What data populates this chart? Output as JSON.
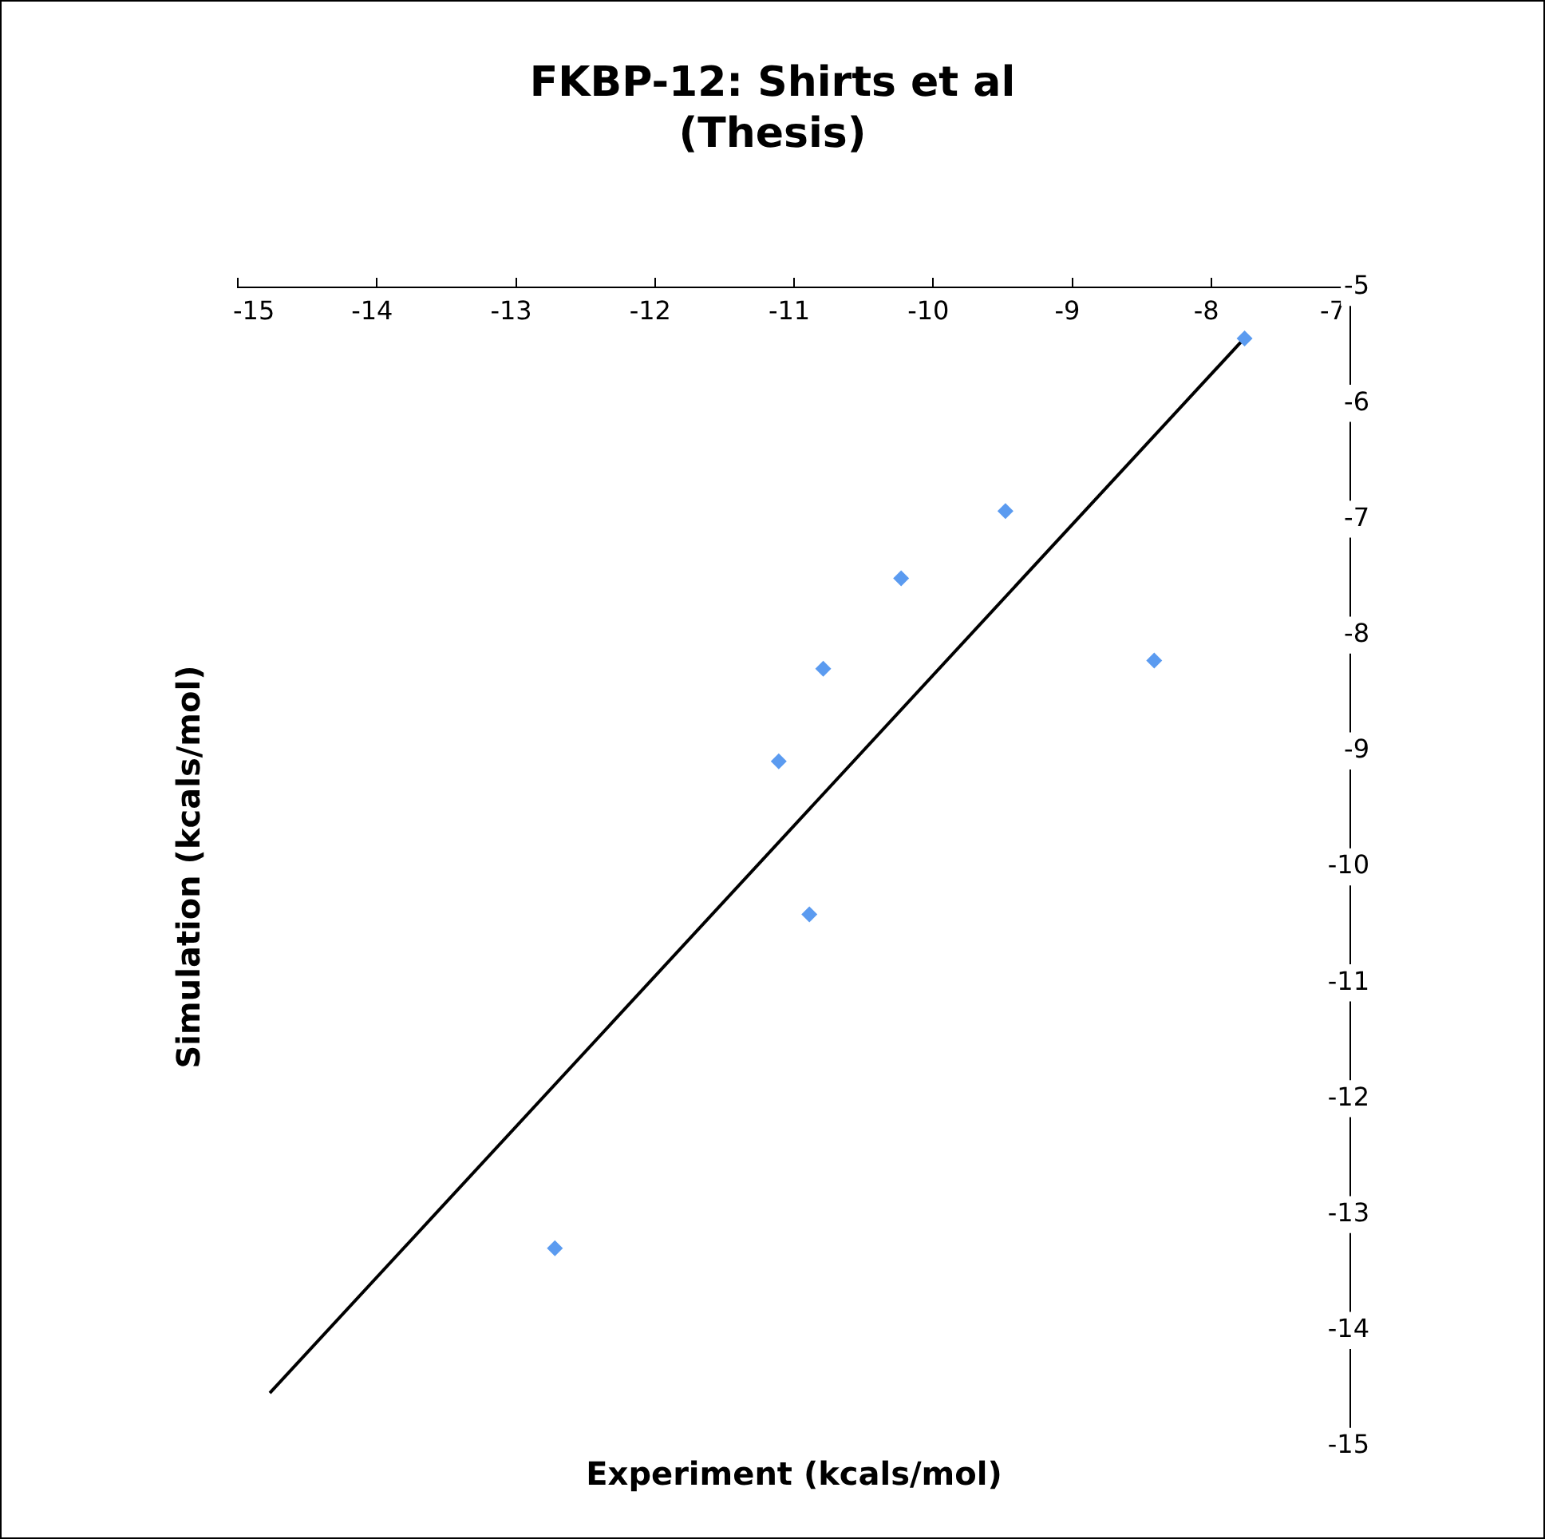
{
  "chart_data": {
    "type": "scatter",
    "title": "FKBP-12: Shirts et al\n(Thesis)",
    "xlabel": "Experiment (kcals/mol)",
    "ylabel": "Simulation (kcals/mol)",
    "x": [
      -7.76,
      -9.48,
      -10.23,
      -10.79,
      -11.11,
      -10.89,
      -8.41,
      -12.72
    ],
    "series": [
      {
        "color": "#5b9bf0",
        "marker": "diamond",
        "values": [
          -5.44,
          -6.93,
          -7.51,
          -8.29,
          -9.09,
          -10.41,
          -8.22,
          -13.29
        ]
      },
      {
        "type": "line",
        "marker": "none",
        "color": "#000000",
        "x": [
          -14.77,
          -7.77
        ],
        "values": [
          -14.54,
          -5.45
        ]
      }
    ],
    "xlim": [
      -15,
      -7
    ],
    "ylim": [
      -15,
      -5
    ],
    "xticks": [
      -15,
      -14,
      -13,
      -12,
      -11,
      -10,
      -9,
      -8,
      -7
    ],
    "yticks": [
      -15,
      -14,
      -13,
      -12,
      -11,
      -10,
      -9,
      -8,
      -7,
      -6,
      -5
    ]
  }
}
